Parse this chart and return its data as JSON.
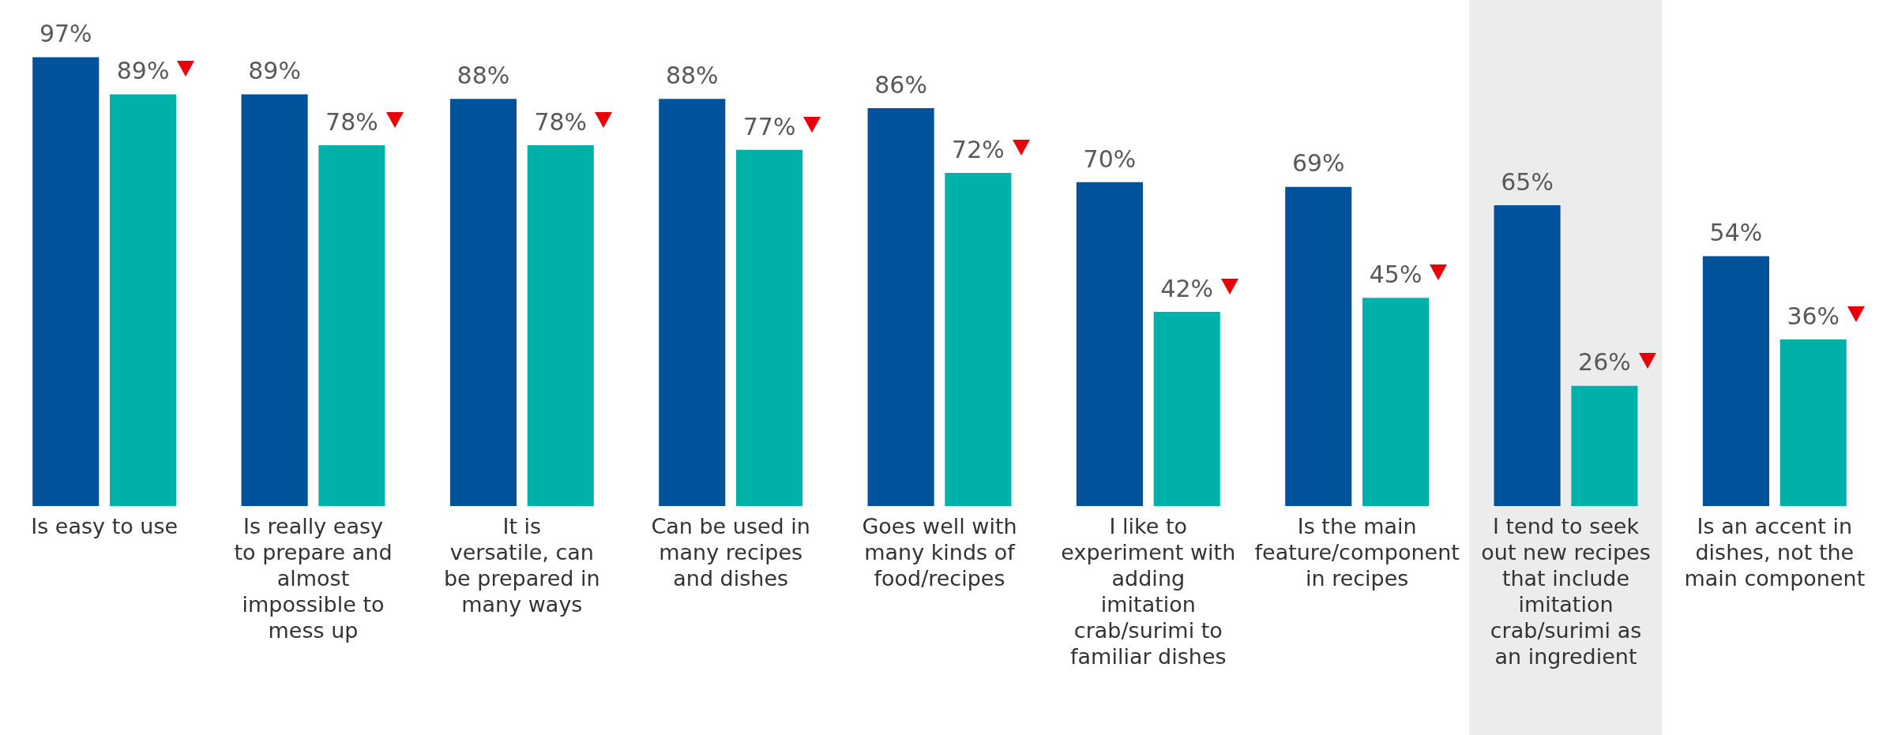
{
  "chart_data": {
    "type": "bar",
    "categories": [
      "Is easy to use",
      "Is really easy to prepare and almost impossible to mess up",
      "It is versatile, can be prepared in many ways",
      "Can be used in many recipes and dishes",
      "Goes well with many kinds of food/recipes",
      "I like to experiment with adding imitation crab/surimi to familiar dishes",
      "Is the main feature/component in recipes",
      "I tend to seek out new recipes that include imitation crab/surimi as an ingredient",
      "Is an accent in dishes, not the main component"
    ],
    "series": [
      {
        "color": "#00529b",
        "values": [
          97,
          89,
          88,
          88,
          86,
          70,
          69,
          65,
          54
        ],
        "value_labels": [
          "97%",
          "89%",
          "88%",
          "88%",
          "86%",
          "70%",
          "69%",
          "65%",
          "54%"
        ]
      },
      {
        "color": "#00b1a9",
        "values": [
          89,
          78,
          78,
          77,
          72,
          42,
          45,
          26,
          36
        ],
        "value_labels": [
          "89%",
          "78%",
          "78%",
          "77%",
          "72%",
          "42%",
          "45%",
          "26%",
          "36%"
        ]
      }
    ],
    "bands": [
      {
        "axis": "x",
        "from": "I tend to seek out new recipes that include imitation crab/surimi as an ingredient",
        "to": "I tend to seek out new recipes that include imitation crab/surimi as an ingredient",
        "color": "#ececec"
      }
    ],
    "grid": false,
    "legend": false
  }
}
